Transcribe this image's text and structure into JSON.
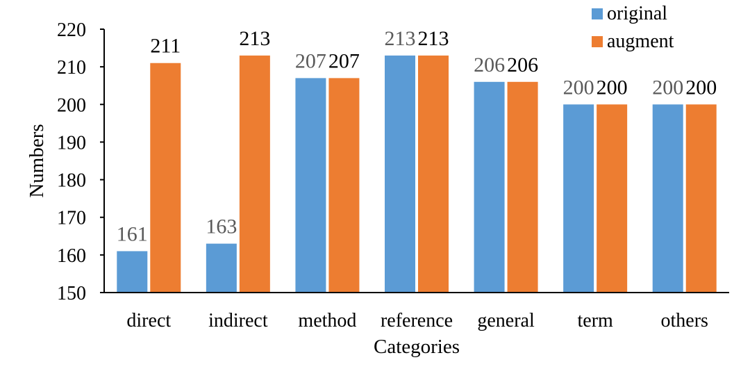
{
  "chart_data": {
    "type": "bar",
    "categories": [
      "direct",
      "indirect",
      "method",
      "reference",
      "general",
      "term",
      "others"
    ],
    "series": [
      {
        "name": "original",
        "values": [
          161,
          163,
          207,
          213,
          206,
          200,
          200
        ],
        "color": "#5B9BD5",
        "label_color": "#595959"
      },
      {
        "name": "augment",
        "values": [
          211,
          213,
          207,
          213,
          206,
          200,
          200
        ],
        "color": "#ED7D31",
        "label_color": "#000000"
      }
    ],
    "xlabel": "Categories",
    "ylabel": "Numbers",
    "ylim": [
      150,
      220
    ],
    "yticks": [
      150,
      160,
      170,
      180,
      190,
      200,
      210,
      220
    ],
    "grid": false,
    "legend_position": "top-right"
  }
}
